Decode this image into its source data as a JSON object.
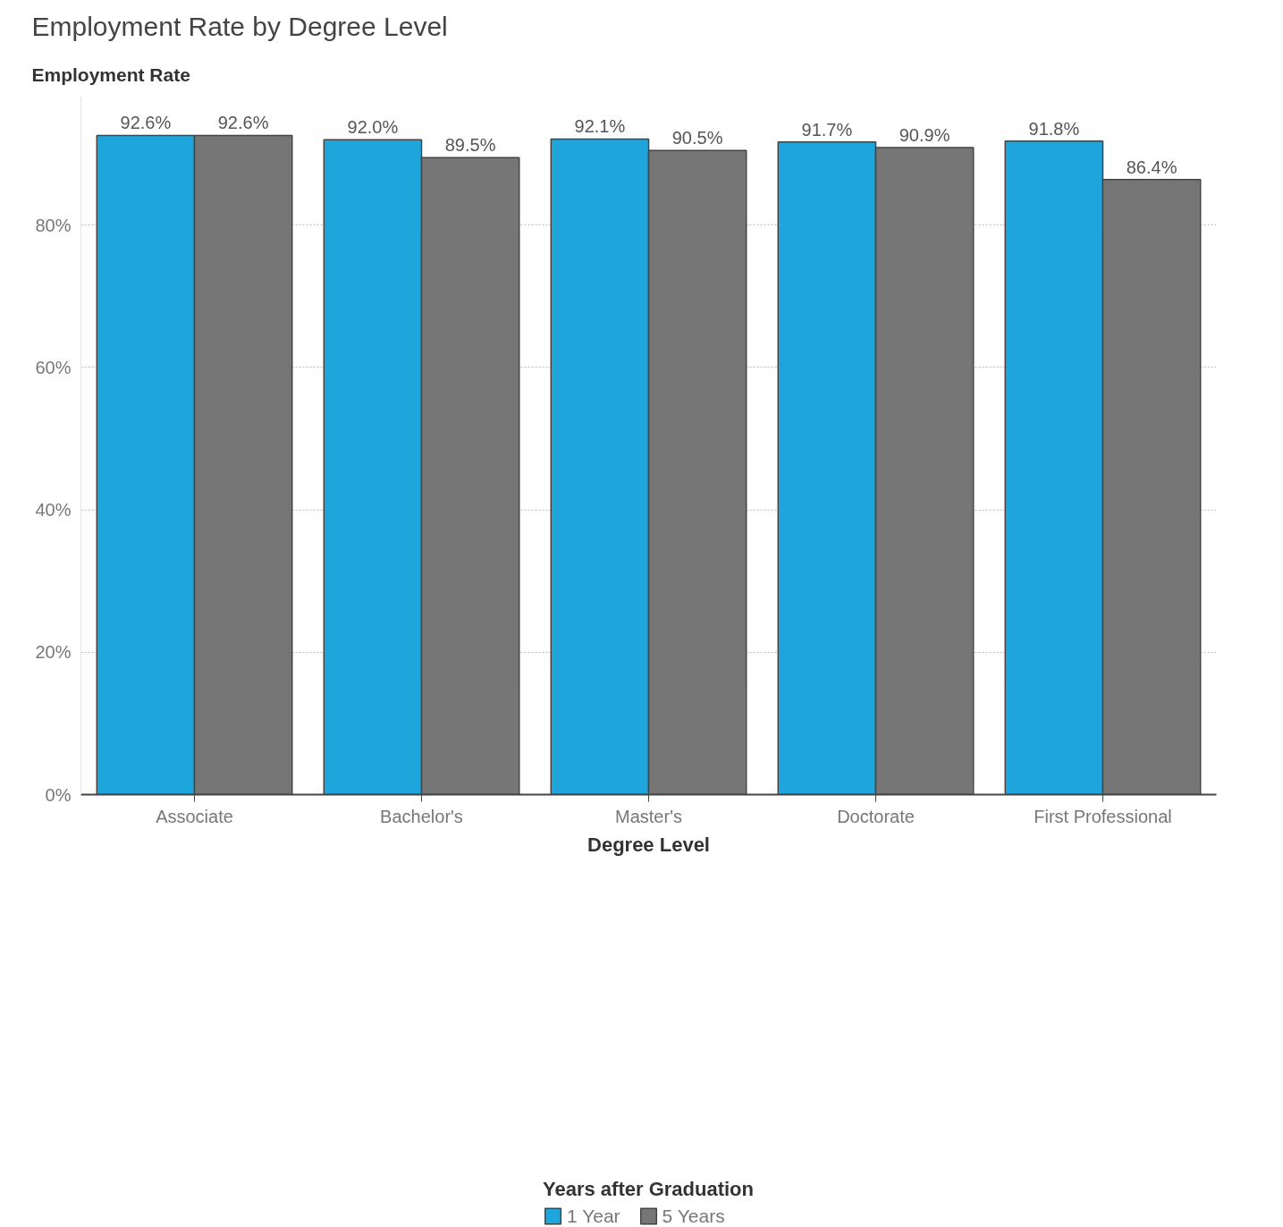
{
  "chart_data": {
    "type": "bar",
    "title": "Employment Rate by Degree Level",
    "xlabel": "Degree Level",
    "ylabel": "Employment Rate",
    "legend_title": "Years after Graduation",
    "categories": [
      "Associate",
      "Bachelor's",
      "Master's",
      "Doctorate",
      "First Professional"
    ],
    "series": [
      {
        "name": "1 Year",
        "color": "#1ea5dc",
        "values": [
          92.6,
          92.0,
          92.1,
          91.7,
          91.8
        ],
        "value_labels": [
          "92.6%",
          "92.0%",
          "92.1%",
          "91.7%",
          "91.8%"
        ]
      },
      {
        "name": "5 Years",
        "color": "#767676",
        "values": [
          92.6,
          89.5,
          90.5,
          90.9,
          86.4
        ],
        "value_labels": [
          "92.6%",
          "89.5%",
          "90.5%",
          "90.9%",
          "86.4%"
        ]
      }
    ],
    "ylim": [
      0,
      98
    ],
    "yticks": [
      {
        "value": 0,
        "label": "0%"
      },
      {
        "value": 20,
        "label": "20%"
      },
      {
        "value": 40,
        "label": "40%"
      },
      {
        "value": 60,
        "label": "60%"
      },
      {
        "value": 80,
        "label": "80%"
      }
    ],
    "grid": "y",
    "legend": "bottom"
  }
}
